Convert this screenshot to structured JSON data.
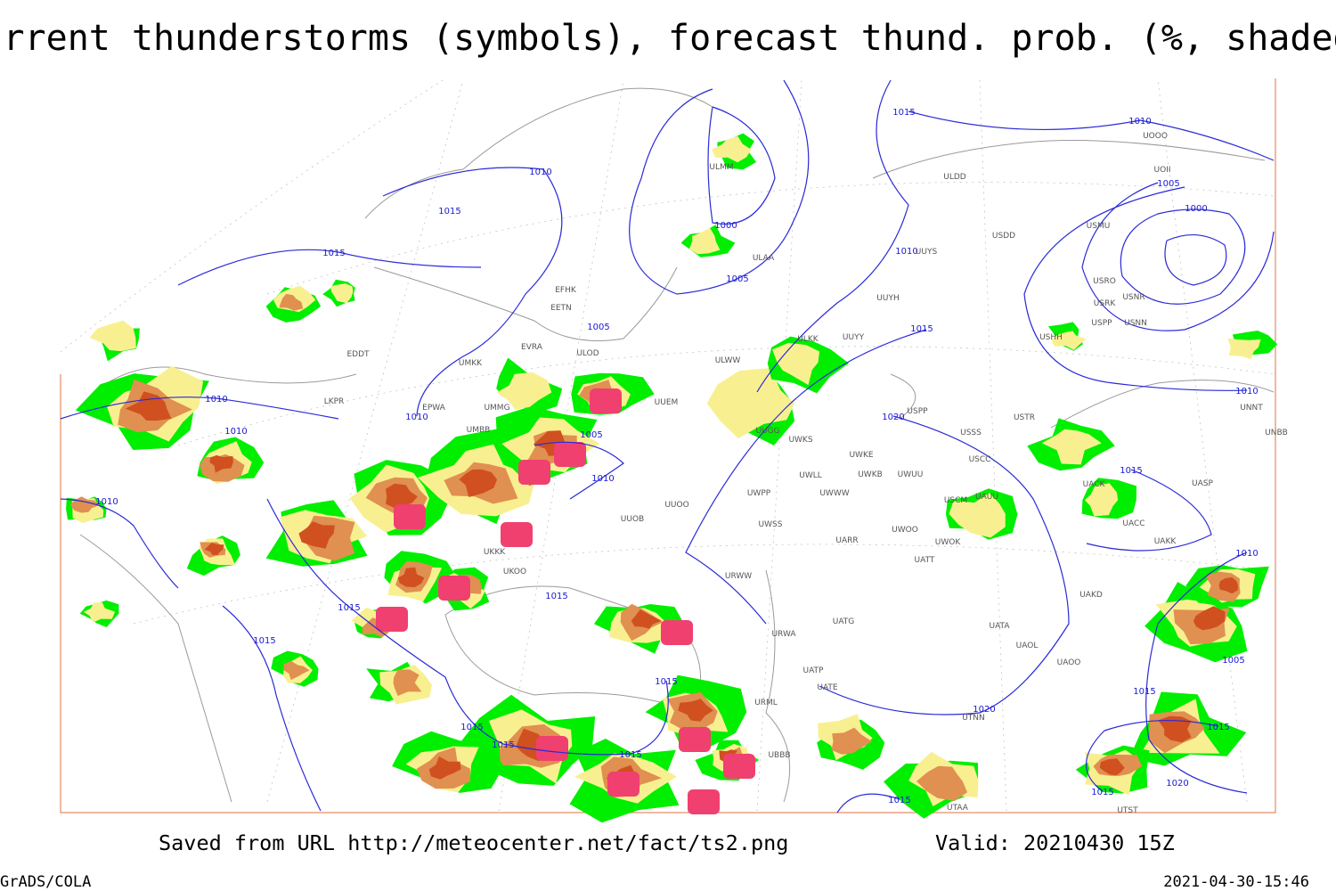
{
  "title": "Current thunderstorms (symbols), forecast thund. prob. (%, shaded)",
  "footer": {
    "saved_from": "Saved from URL http://meteocenter.net/fact/ts2.png",
    "valid": "Valid: 20210430 15Z",
    "credit": "GrADS/COLA",
    "timestamp": "2021-04-30-15:46"
  },
  "isobar_labels": [
    "1015",
    "1010",
    "1005",
    "1000",
    "1010",
    "1015",
    "1000",
    "1005",
    "1015",
    "1010",
    "1015",
    "1005",
    "1010",
    "1010",
    "1010",
    "1005",
    "1010",
    "1020",
    "1015",
    "1010",
    "1010",
    "1010",
    "1015",
    "1015",
    "1015",
    "1015",
    "1005",
    "1015",
    "1015",
    "1020",
    "1015",
    "1015",
    "1015",
    "1020",
    "1015",
    "1015"
  ],
  "station_codes": [
    "ULMM",
    "ULDD",
    "UOII",
    "UOOO",
    "USDD",
    "USMU",
    "UUYS",
    "ULAA",
    "EFHK",
    "EETN",
    "UUYH",
    "USRK",
    "USRO",
    "USNR",
    "USPP",
    "USNN",
    "USHH",
    "ULOD",
    "EVRA",
    "ULKK",
    "UUYY",
    "UMKK",
    "ULWW",
    "EDDT",
    "EPWA",
    "UMMG",
    "UUEM",
    "LKPR",
    "UUGG",
    "UWKS",
    "USPP",
    "USSS",
    "USTR",
    "UNNT",
    "UNBB",
    "UMBB",
    "USCC",
    "UWKE",
    "UWKB",
    "UWUU",
    "UWLL",
    "UWWW",
    "UWPP",
    "USCM",
    "UAUU",
    "UACK",
    "UASP",
    "UUOO",
    "UUOB",
    "UWSS",
    "UACC",
    "UARR",
    "UWOO",
    "UWOK",
    "UAKK",
    "UATT",
    "URWW",
    "UKKK",
    "UKOO",
    "UAKD",
    "UATG",
    "URWA",
    "UATA",
    "UAOL",
    "UAOO",
    "UATE",
    "UATP",
    "URML",
    "UTNN",
    "UBBB",
    "UTAA",
    "UTST"
  ]
}
